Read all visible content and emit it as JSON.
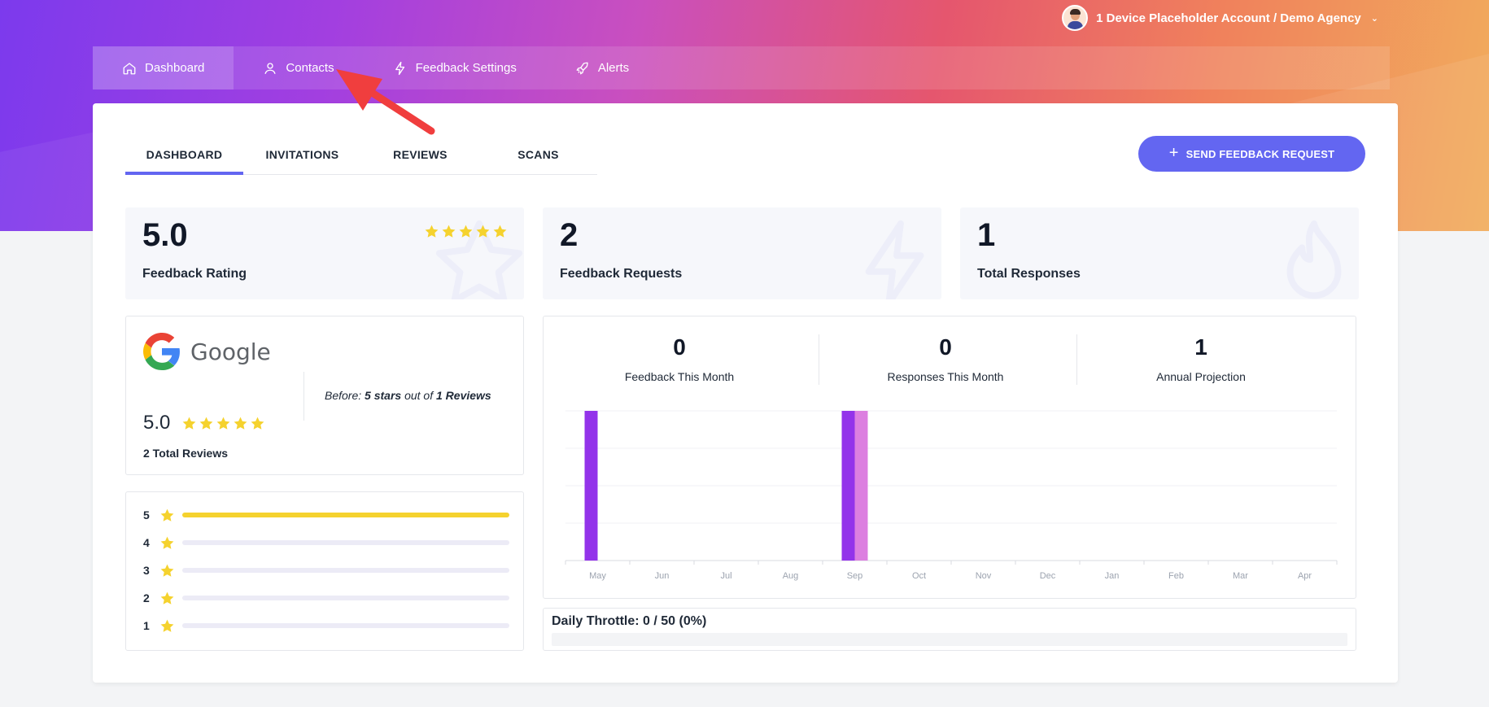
{
  "account": {
    "label": "1 Device Placeholder Account / Demo Agency"
  },
  "nav": [
    {
      "label": "Dashboard",
      "icon": "home-icon",
      "active": true
    },
    {
      "label": "Contacts",
      "icon": "user-icon",
      "active": false
    },
    {
      "label": "Feedback Settings",
      "icon": "bolt-icon",
      "active": false
    },
    {
      "label": "Alerts",
      "icon": "rocket-icon",
      "active": false
    }
  ],
  "tabs": [
    {
      "label": "DASHBOARD",
      "active": true
    },
    {
      "label": "INVITATIONS",
      "active": false
    },
    {
      "label": "REVIEWS",
      "active": false
    },
    {
      "label": "SCANS",
      "active": false
    }
  ],
  "send_button": {
    "label": "SEND FEEDBACK REQUEST"
  },
  "stats": [
    {
      "value": "5.0",
      "label": "Feedback Rating",
      "icon": "star-icon",
      "stars": 5
    },
    {
      "value": "2",
      "label": "Feedback Requests",
      "icon": "bolt-icon"
    },
    {
      "value": "1",
      "label": "Total Responses",
      "icon": "fire-icon"
    }
  ],
  "google": {
    "name": "Google",
    "before_prefix": "Before: ",
    "before_stars": "5 stars",
    "before_mid": " out of ",
    "before_reviews": "1 Reviews",
    "rating": "5.0",
    "stars": 5,
    "total": "2 Total Reviews"
  },
  "distribution": [
    {
      "stars": "5",
      "fraction": 1.0
    },
    {
      "stars": "4",
      "fraction": 0
    },
    {
      "stars": "3",
      "fraction": 0
    },
    {
      "stars": "2",
      "fraction": 0
    },
    {
      "stars": "1",
      "fraction": 0
    }
  ],
  "metrics": [
    {
      "value": "0",
      "label": "Feedback This Month"
    },
    {
      "value": "0",
      "label": "Responses This Month"
    },
    {
      "value": "1",
      "label": "Annual Projection"
    }
  ],
  "chart_data": {
    "type": "bar",
    "categories": [
      "May",
      "Jun",
      "Jul",
      "Aug",
      "Sep",
      "Oct",
      "Nov",
      "Dec",
      "Jan",
      "Feb",
      "Mar",
      "Apr"
    ],
    "series": [
      {
        "values": [
          1,
          0,
          0,
          0,
          1,
          0,
          0,
          0,
          0,
          0,
          0,
          0
        ],
        "color": "#9333ea"
      },
      {
        "values": [
          0,
          0,
          0,
          0,
          1,
          0,
          0,
          0,
          0,
          0,
          0,
          0
        ],
        "color": "#dc7fe0"
      }
    ],
    "ylim": [
      0,
      1
    ],
    "grid": true
  },
  "throttle": {
    "label": "Daily Throttle: 0 / 50 (0%)",
    "fraction": 0
  },
  "colors": {
    "accent": "#6366f1",
    "star": "#f5d22e",
    "arrow": "#f03e3e"
  }
}
